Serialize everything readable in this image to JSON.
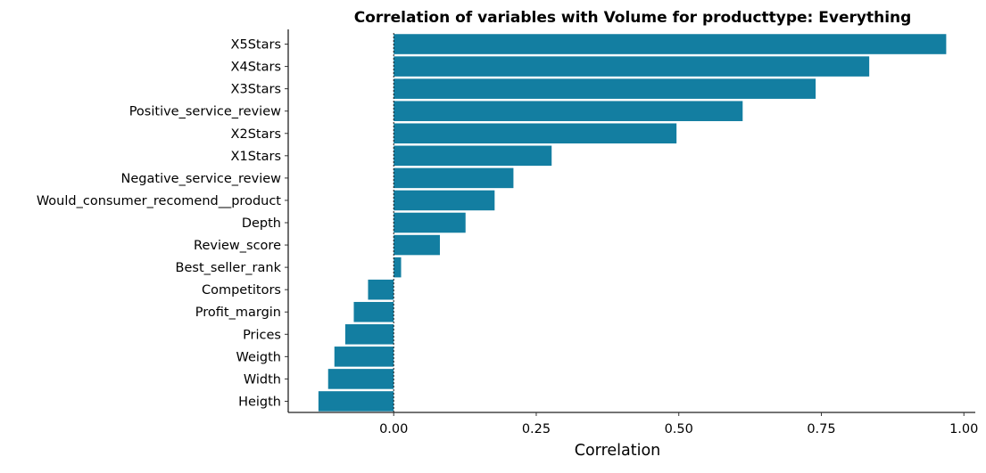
{
  "chart_data": {
    "type": "bar",
    "orientation": "horizontal",
    "title": "Correlation of variables with Volume for producttype:  Everything",
    "xlabel": "Correlation",
    "ylabel": "",
    "xlim": [
      -0.185,
      1.02
    ],
    "xticks": [
      0.0,
      0.25,
      0.5,
      0.75,
      1.0
    ],
    "xtick_labels": [
      "0.00",
      "0.25",
      "0.50",
      "0.75",
      "1.00"
    ],
    "grid": false,
    "legend": "none",
    "bar_color": "#137ea1",
    "zero_line": "dotted",
    "categories": [
      "X5Stars",
      "X4Stars",
      "X3Stars",
      "Positive_service_review",
      "X2Stars",
      "X1Stars",
      "Negative_service_review",
      "Would_consumer_recomend__product",
      "Depth",
      "Review_score",
      "Best_seller_rank",
      "Competitors",
      "Profit_margin",
      "Prices",
      "Weigth",
      "Width",
      "Heigth"
    ],
    "values": [
      0.969,
      0.834,
      0.74,
      0.612,
      0.496,
      0.277,
      0.21,
      0.177,
      0.126,
      0.081,
      0.013,
      -0.045,
      -0.07,
      -0.085,
      -0.104,
      -0.115,
      -0.132
    ]
  }
}
